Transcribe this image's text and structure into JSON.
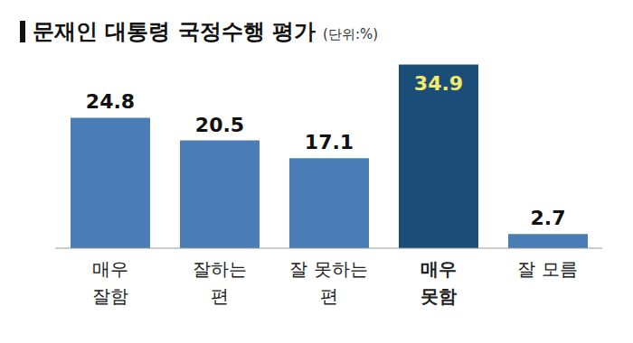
{
  "chart_data": {
    "type": "bar",
    "title": "문재인 대통령 국정수행 평가",
    "subtitle": "(단위:%)",
    "categories": [
      "매우\n잘함",
      "잘하는\n편",
      "잘 못하는\n편",
      "매우\n못함",
      "잘 모름"
    ],
    "values": [
      24.8,
      20.5,
      17.1,
      34.9,
      2.7
    ],
    "colors": [
      "#4a7cb6",
      "#4a7cb6",
      "#4a7cb6",
      "#1b4d79",
      "#4a7cb6"
    ],
    "ylim": [
      0,
      35
    ],
    "data_labels": true,
    "tick_labels": "x",
    "grid": false
  }
}
